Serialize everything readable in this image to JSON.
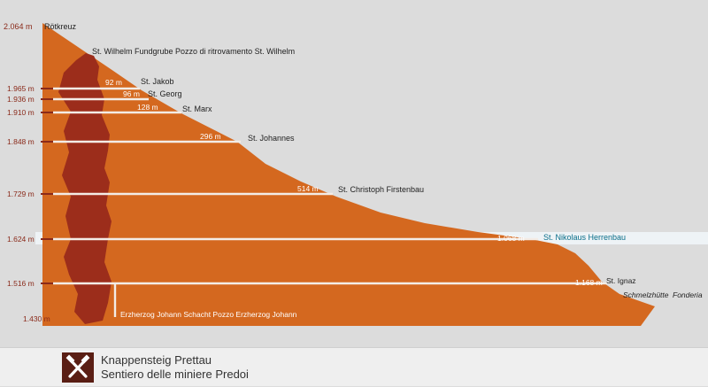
{
  "top": {
    "elevation": "2.064 m",
    "name": "Rötkreuz"
  },
  "fundgrube": "St. Wilhelm Fundgrube  Pozzo di ritrovamento St. Wilhelm",
  "levels": [
    {
      "elevation": "1.965 m",
      "length": "92 m",
      "name": "St. Jakob"
    },
    {
      "elevation": "1.936 m",
      "length": "96 m",
      "name": "St. Georg"
    },
    {
      "elevation": "1.910 m",
      "length": "128 m",
      "name": "St. Marx"
    },
    {
      "elevation": "1.848 m",
      "length": "296 m",
      "name": "St. Johannes"
    },
    {
      "elevation": "1.729 m",
      "length": "514 m",
      "name": "St. Christoph Firstenbau"
    },
    {
      "elevation": "1.624 m",
      "length": "1.068 m",
      "name": "St. Nikolaus Herrenbau",
      "highlight": true
    },
    {
      "elevation": "1.516 m",
      "length": "1.168 m",
      "name": "St. Ignaz"
    }
  ],
  "bottom": {
    "elevation": "1.430 m",
    "shaft": "Erzherzog Johann Schacht  Pozzo Erzherzog Johann"
  },
  "smelter": {
    "de": "Schmelzhütte",
    "it": "Fonderia"
  },
  "footer": {
    "title_de": "Knappensteig Prettau",
    "title_it": "Sentiero delle miniere Predoi"
  },
  "colors": {
    "mountain": "#d4681f",
    "core": "#9c2d1b",
    "accent": "#0a6f8a",
    "tick": "#8a2a1a"
  }
}
